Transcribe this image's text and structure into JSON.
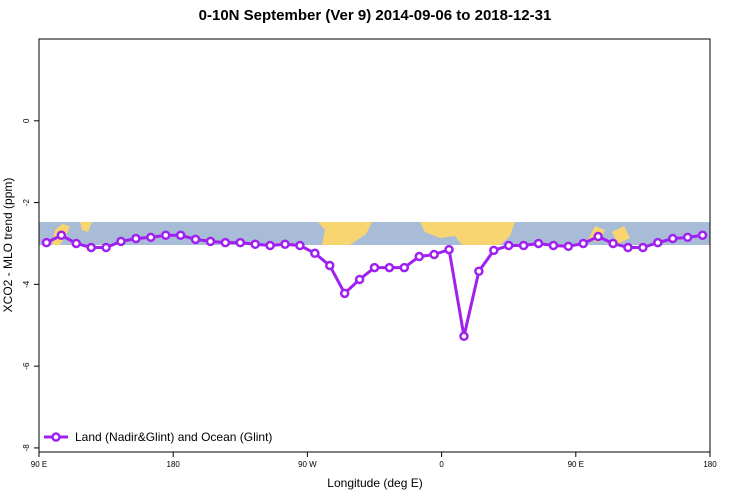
{
  "chart_data": {
    "type": "line",
    "title": "0-10N September (Ver 9)   2014-09-06 to 2018-12-31",
    "x_label": "Longitude (deg E)",
    "y_label": "XCO2 - MLO trend (ppm)",
    "x": [
      95,
      105,
      115,
      125,
      135,
      145,
      155,
      165,
      175,
      185,
      195,
      205,
      215,
      225,
      235,
      245,
      255,
      265,
      275,
      285,
      295,
      305,
      315,
      325,
      335,
      345,
      355,
      365,
      375,
      385,
      395,
      405,
      415,
      425,
      435,
      445,
      455,
      465,
      475,
      485,
      495,
      505,
      515,
      525,
      535
    ],
    "series": [
      {
        "name": "Land (Nadir&Glint) and Ocean (Glint)",
        "color": "#a020f0",
        "values": [
          -2.98,
          -2.8,
          -3.0,
          -3.1,
          -3.1,
          -2.95,
          -2.88,
          -2.85,
          -2.8,
          -2.8,
          -2.9,
          -2.95,
          -2.98,
          -2.98,
          -3.02,
          -3.05,
          -3.02,
          -3.05,
          -3.24,
          -3.54,
          -4.22,
          -3.88,
          -3.59,
          -3.59,
          -3.59,
          -3.32,
          -3.27,
          -3.15,
          -5.27,
          -3.68,
          -3.17,
          -3.05,
          -3.05,
          -3.0,
          -3.05,
          -3.07,
          -3.0,
          -2.83,
          -3.0,
          -3.1,
          -3.1,
          -2.98,
          -2.88,
          -2.85,
          -2.8
        ]
      }
    ],
    "xlim": [
      90,
      540
    ],
    "xticks": [
      {
        "value": 90,
        "label": "90 E"
      },
      {
        "value": 180,
        "label": "180"
      },
      {
        "value": 270,
        "label": "90 W"
      },
      {
        "value": 360,
        "label": "0"
      },
      {
        "value": 450,
        "label": "90 E"
      },
      {
        "value": 540,
        "label": "180"
      }
    ],
    "ylim": [
      -8.1,
      2
    ],
    "yticks": [
      -8,
      -6,
      -4,
      -2,
      0
    ],
    "legend": "bottom-left"
  }
}
